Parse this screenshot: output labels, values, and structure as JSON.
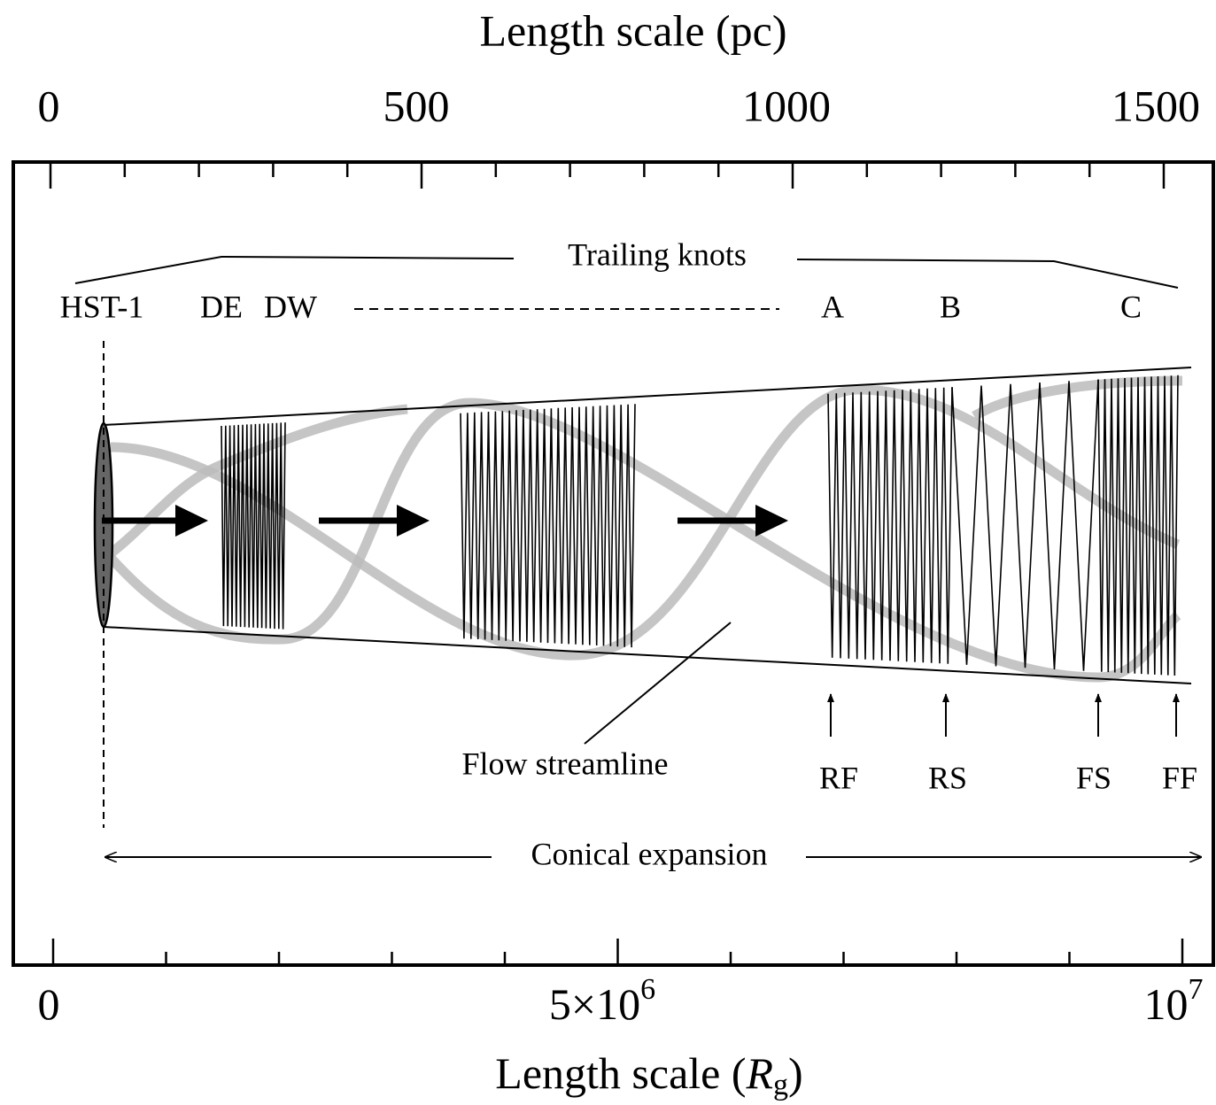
{
  "top_axis": {
    "title": "Length scale (pc)",
    "ticks": [
      "0",
      "500",
      "1000",
      "1500"
    ]
  },
  "bottom_axis": {
    "title": {
      "text": "Length scale (",
      "variable": "R",
      "subscript": "g",
      "close": ")"
    },
    "ticks": [
      {
        "text": "0"
      },
      {
        "text": "5×10",
        "exponent": "6"
      },
      {
        "text": "10",
        "exponent": "7"
      }
    ]
  },
  "labels": {
    "trailing_knots": "Trailing knots",
    "knots": [
      "HST-1",
      "DE",
      "DW",
      "A",
      "B",
      "C"
    ],
    "shocks": [
      "RF",
      "RS",
      "FS",
      "FF"
    ],
    "flow_streamline": "Flow streamline",
    "conical_expansion": "Conical expansion"
  }
}
